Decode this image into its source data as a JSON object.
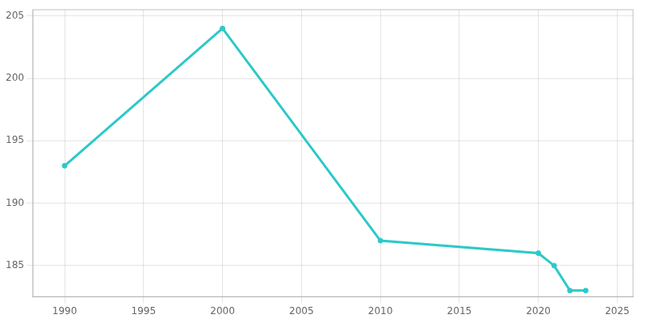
{
  "chart_data": {
    "type": "line",
    "x": [
      1990,
      2000,
      2010,
      2020,
      2021,
      2022,
      2023
    ],
    "values": [
      193,
      204,
      187,
      186,
      185,
      183,
      183
    ],
    "color": "#2ec8c8",
    "xlim": [
      1988,
      2026
    ],
    "ylim": [
      182.5,
      205.5
    ],
    "xticks": [
      1990,
      1995,
      2000,
      2005,
      2010,
      2015,
      2020,
      2025
    ],
    "yticks": [
      185,
      190,
      195,
      200,
      205
    ],
    "grid": true
  }
}
